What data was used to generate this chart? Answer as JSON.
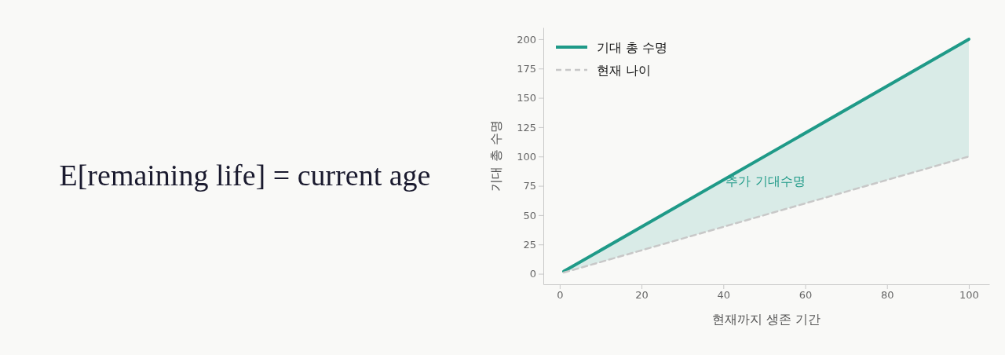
{
  "chart_data": {
    "type": "line",
    "xlabel": "현재까지 생존 기간",
    "ylabel": "기대 총 수명",
    "annotations": [
      "E[remaining life] = current age",
      "추가 기대수명"
    ],
    "x": [
      1,
      100
    ],
    "series": [
      {
        "name": "기대 총 수명",
        "color": "#1f9a88",
        "values": [
          2,
          200
        ],
        "lower": [
          1,
          100
        ],
        "upper": [
          2,
          200
        ],
        "line_style": "solid"
      },
      {
        "name": "현재 나이",
        "color": "#c8c8c8",
        "values": [
          1,
          100
        ],
        "line_style": "dashed"
      }
    ],
    "xlim": [
      -4,
      105
    ],
    "ylim": [
      -9,
      210
    ],
    "xticks": [
      0,
      20,
      40,
      60,
      80,
      100
    ],
    "yticks": [
      0,
      25,
      50,
      75,
      100,
      125,
      150,
      175,
      200
    ],
    "grid": false,
    "legend": "top left",
    "marker": "none"
  }
}
